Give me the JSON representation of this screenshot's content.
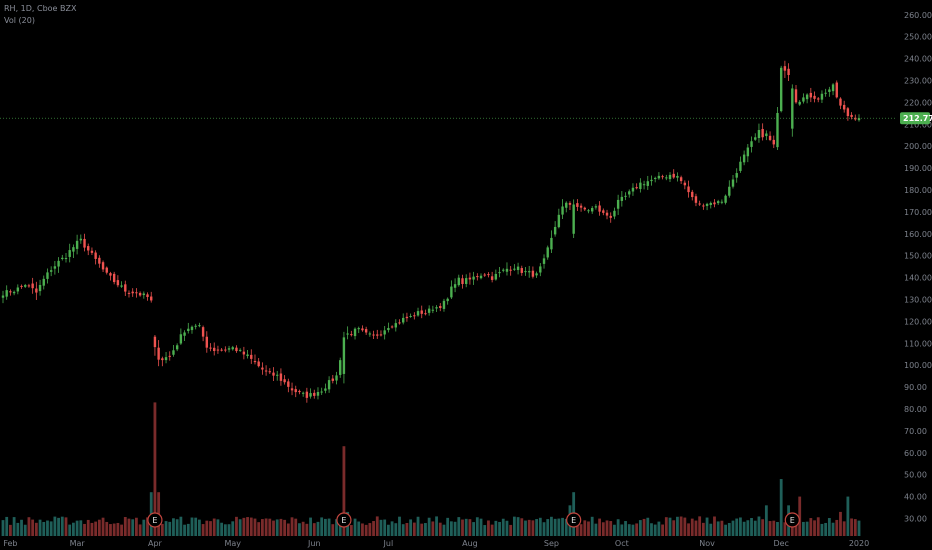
{
  "header": {
    "title": "RH, 1D, Cboe BZX",
    "indicator": "Vol (20)"
  },
  "last_price_label": "212.77",
  "earnings_marker_text": "E",
  "colors": {
    "up": "#26a69a",
    "down": "#ef5350",
    "up_body": "#4caf50",
    "vol_up": "#1f5f59",
    "vol_down": "#7a2b2b",
    "price_line": "#4caf50",
    "axis_text": "#7d828c",
    "earn_ring": "#c2463f"
  },
  "chart_data": {
    "type": "candlestick",
    "title": "RH, 1D, Cboe BZX",
    "xlabel": "",
    "ylabel": "",
    "ylim": [
      22,
      264
    ],
    "yticks": [
      30,
      40,
      50,
      60,
      70,
      80,
      90,
      100,
      110,
      120,
      130,
      140,
      150,
      160,
      170,
      180,
      190,
      200,
      210,
      220,
      230,
      240,
      250,
      260
    ],
    "ytick_labels": [
      "30.00",
      "40.00",
      "50.00",
      "60.00",
      "70.00",
      "80.00",
      "90.00",
      "100.00",
      "110.00",
      "120.00",
      "130.00",
      "140.00",
      "150.00",
      "160.00",
      "170.00",
      "180.00",
      "190.00",
      "200.00",
      "210.00",
      "220.00",
      "230.00",
      "240.00",
      "250.00",
      "260.00"
    ],
    "xticks": [
      {
        "label": "Feb",
        "day": 2
      },
      {
        "label": "Mar",
        "day": 20
      },
      {
        "label": "Apr",
        "day": 41
      },
      {
        "label": "May",
        "day": 62
      },
      {
        "label": "Jun",
        "day": 84
      },
      {
        "label": "Jul",
        "day": 104
      },
      {
        "label": "Aug",
        "day": 126
      },
      {
        "label": "Sep",
        "day": 148
      },
      {
        "label": "Oct",
        "day": 167
      },
      {
        "label": "Nov",
        "day": 190
      },
      {
        "label": "Dec",
        "day": 210
      },
      {
        "label": "2020",
        "day": 231
      }
    ],
    "last_price": 212.77,
    "earnings_days": [
      41,
      92,
      154,
      213
    ],
    "anchors": [
      [
        0,
        133,
        4
      ],
      [
        3,
        134,
        3
      ],
      [
        6,
        137,
        4
      ],
      [
        9,
        133,
        6
      ],
      [
        11,
        139,
        5
      ],
      [
        13,
        144,
        4
      ],
      [
        15,
        147,
        5
      ],
      [
        17,
        150,
        4
      ],
      [
        19,
        154,
        6
      ],
      [
        21,
        157,
        4
      ],
      [
        24,
        150,
        5
      ],
      [
        26,
        146,
        4
      ],
      [
        28,
        141,
        5
      ],
      [
        31,
        137,
        5
      ],
      [
        33,
        134,
        4
      ],
      [
        36,
        133,
        4
      ],
      [
        39,
        131,
        4
      ],
      [
        40,
        129,
        4
      ],
      [
        41,
        106,
        10
      ],
      [
        43,
        103,
        5
      ],
      [
        45,
        104,
        4
      ],
      [
        47,
        110,
        5
      ],
      [
        49,
        116,
        4
      ],
      [
        51,
        118,
        5
      ],
      [
        53,
        117,
        5
      ],
      [
        55,
        109,
        5
      ],
      [
        57,
        107,
        4
      ],
      [
        59,
        107,
        3
      ],
      [
        62,
        108,
        3
      ],
      [
        64,
        106,
        4
      ],
      [
        66,
        104,
        4
      ],
      [
        68,
        101,
        5
      ],
      [
        70,
        98,
        5
      ],
      [
        72,
        96,
        4
      ],
      [
        74,
        95,
        5
      ],
      [
        76,
        92,
        4
      ],
      [
        78,
        89,
        5
      ],
      [
        80,
        87,
        4
      ],
      [
        82,
        86,
        4
      ],
      [
        84,
        87,
        4
      ],
      [
        86,
        89,
        5
      ],
      [
        88,
        92,
        4
      ],
      [
        90,
        95,
        4
      ],
      [
        92,
        113,
        12
      ],
      [
        94,
        115,
        5
      ],
      [
        96,
        116,
        4
      ],
      [
        98,
        114,
        4
      ],
      [
        100,
        113,
        4
      ],
      [
        102,
        115,
        4
      ],
      [
        104,
        118,
        4
      ],
      [
        106,
        119,
        3
      ],
      [
        108,
        121,
        4
      ],
      [
        110,
        122,
        4
      ],
      [
        112,
        124,
        3
      ],
      [
        114,
        124,
        4
      ],
      [
        116,
        126,
        3
      ],
      [
        118,
        127,
        3
      ],
      [
        120,
        130,
        4
      ],
      [
        122,
        139,
        7
      ],
      [
        124,
        138,
        5
      ],
      [
        126,
        139,
        4
      ],
      [
        128,
        141,
        4
      ],
      [
        130,
        142,
        4
      ],
      [
        132,
        140,
        4
      ],
      [
        134,
        142,
        4
      ],
      [
        136,
        144,
        5
      ],
      [
        138,
        145,
        4
      ],
      [
        140,
        143,
        4
      ],
      [
        142,
        142,
        4
      ],
      [
        144,
        141,
        4
      ],
      [
        146,
        147,
        6
      ],
      [
        148,
        157,
        7
      ],
      [
        150,
        170,
        9
      ],
      [
        152,
        173,
        5
      ],
      [
        154,
        174,
        4
      ],
      [
        156,
        171,
        4
      ],
      [
        158,
        171,
        3
      ],
      [
        160,
        172,
        4
      ],
      [
        162,
        169,
        4
      ],
      [
        164,
        168,
        4
      ],
      [
        166,
        174,
        5
      ],
      [
        168,
        177,
        4
      ],
      [
        170,
        180,
        4
      ],
      [
        172,
        183,
        4
      ],
      [
        174,
        184,
        4
      ],
      [
        176,
        185,
        3
      ],
      [
        178,
        186,
        4
      ],
      [
        180,
        187,
        4
      ],
      [
        182,
        186,
        4
      ],
      [
        184,
        182,
        4
      ],
      [
        186,
        176,
        5
      ],
      [
        188,
        173,
        4
      ],
      [
        190,
        174,
        3
      ],
      [
        192,
        174,
        3
      ],
      [
        194,
        175,
        3
      ],
      [
        196,
        181,
        5
      ],
      [
        198,
        189,
        5
      ],
      [
        200,
        195,
        6
      ],
      [
        202,
        201,
        5
      ],
      [
        204,
        206,
        5
      ],
      [
        206,
        205,
        5
      ],
      [
        208,
        200,
        6
      ],
      [
        209,
        213,
        9
      ],
      [
        210,
        238,
        8
      ],
      [
        212,
        234,
        6
      ],
      [
        214,
        222,
        8
      ],
      [
        216,
        222,
        4
      ],
      [
        218,
        223,
        4
      ],
      [
        220,
        222,
        4
      ],
      [
        222,
        225,
        4
      ],
      [
        224,
        227,
        4
      ],
      [
        226,
        218,
        5
      ],
      [
        228,
        214,
        4
      ],
      [
        230,
        213,
        3
      ],
      [
        231,
        212.77,
        4
      ]
    ],
    "volume_spikes": [
      {
        "day": 41,
        "value": 83,
        "up": false
      },
      {
        "day": 40,
        "value": 42,
        "up": true
      },
      {
        "day": 42,
        "value": 42,
        "up": false
      },
      {
        "day": 92,
        "value": 63,
        "up": false
      },
      {
        "day": 93,
        "value": 33,
        "up": true
      },
      {
        "day": 154,
        "value": 42,
        "up": true
      },
      {
        "day": 153,
        "value": 36,
        "up": true
      },
      {
        "day": 206,
        "value": 36,
        "up": true
      },
      {
        "day": 210,
        "value": 48,
        "up": true
      },
      {
        "day": 212,
        "value": 36,
        "up": true
      },
      {
        "day": 215,
        "value": 40,
        "up": false
      },
      {
        "day": 226,
        "value": 33,
        "up": false
      },
      {
        "day": 228,
        "value": 40,
        "up": true
      },
      {
        "day": 229,
        "value": 30,
        "up": false
      }
    ],
    "volume_base": 27
  }
}
